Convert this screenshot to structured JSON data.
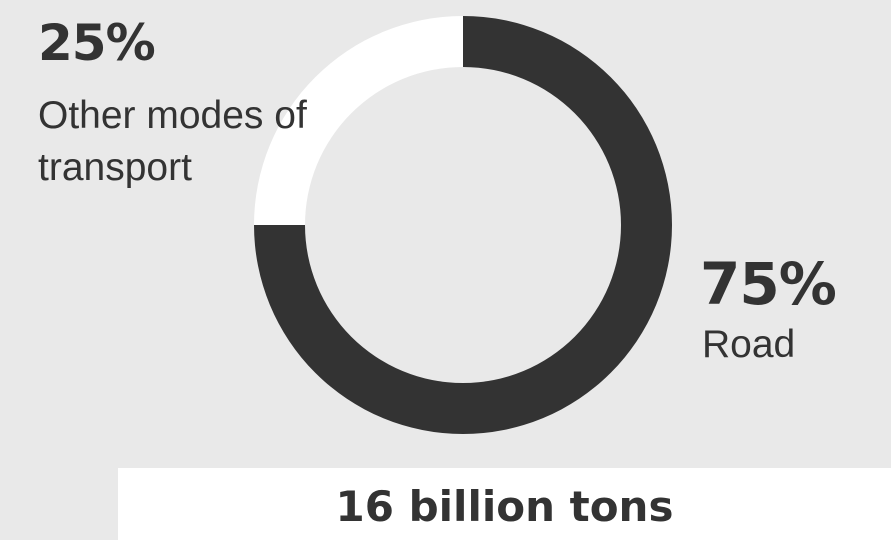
{
  "chart_data": {
    "type": "pie",
    "variant": "donut",
    "categories": [
      "Road",
      "Other modes of transport"
    ],
    "values": [
      75,
      25
    ],
    "value_labels": [
      "75%",
      "25%"
    ],
    "colors": [
      "#333333",
      "#ffffff"
    ],
    "total_label": "16 billion tons",
    "start_angle": "12 o'clock",
    "direction": "clockwise"
  },
  "labels": {
    "other_pct": "25%",
    "other_name": "Other modes of transport",
    "road_pct": "75%",
    "road_name": "Road",
    "total": "16 billion tons"
  },
  "colors": {
    "background": "#e9e9e9",
    "text": "#333333"
  }
}
